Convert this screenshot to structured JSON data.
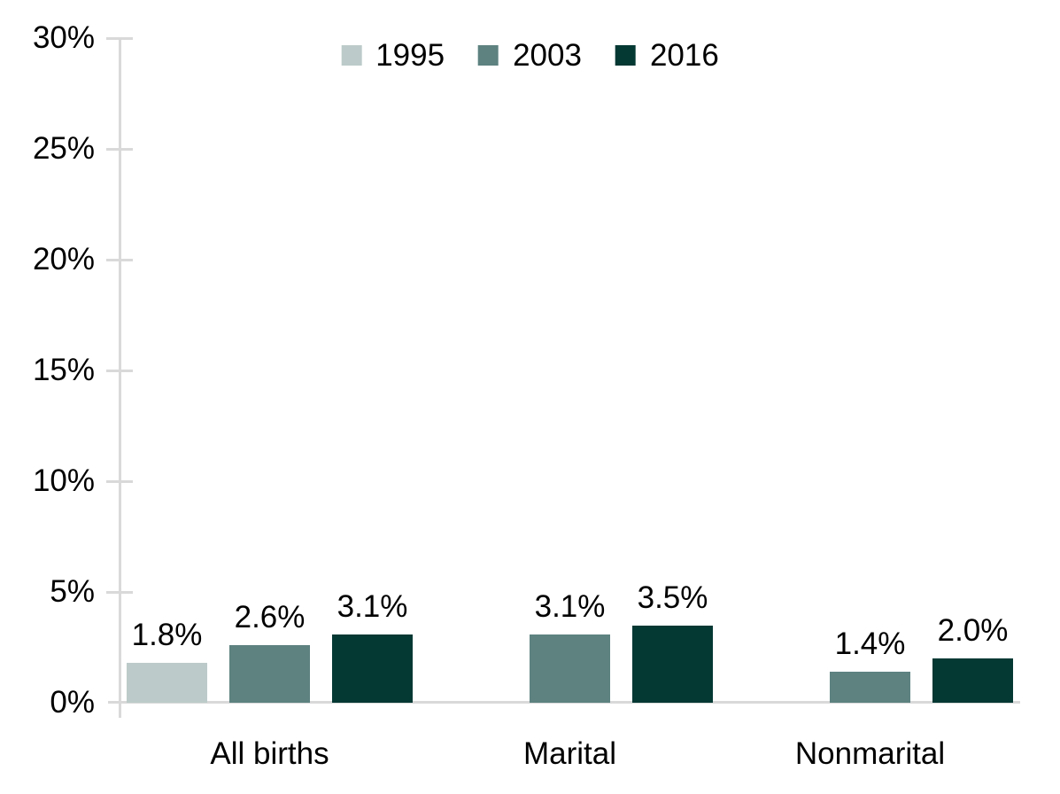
{
  "chart_data": {
    "type": "bar",
    "title": "",
    "categories": [
      "All births",
      "Marital",
      "Nonmarital"
    ],
    "series": [
      {
        "name": "1995",
        "color": "#bccbc9",
        "values": [
          1.8,
          null,
          null
        ],
        "labels": [
          "1.8%",
          null,
          null
        ]
      },
      {
        "name": "2003",
        "color": "#5d8280",
        "values": [
          2.6,
          3.1,
          1.4
        ],
        "labels": [
          "2.6%",
          "3.1%",
          "1.4%"
        ]
      },
      {
        "name": "2016",
        "color": "#043833",
        "values": [
          3.1,
          3.5,
          2.0
        ],
        "labels": [
          "3.1%",
          "3.5%",
          "2.0%"
        ]
      }
    ],
    "xlabel": "",
    "ylabel": "",
    "ylim": [
      0,
      30
    ],
    "ytick_values": [
      0,
      5,
      10,
      15,
      20,
      25,
      30
    ],
    "ytick_labels": [
      "0%",
      "5%",
      "10%",
      "15%",
      "20%",
      "25%",
      "30%"
    ],
    "grid": false,
    "legend_position": "top-center",
    "colors": {
      "axis": "#d9d9d9",
      "text": "#000000",
      "background": "#ffffff"
    }
  }
}
